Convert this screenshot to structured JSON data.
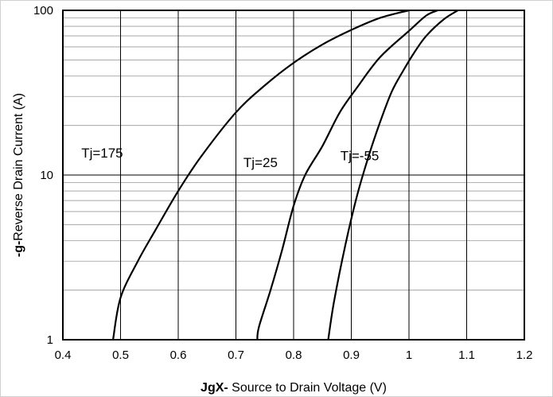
{
  "chart_data": {
    "type": "line",
    "xlabel_prefix": "JgX-",
    "xlabel_rest": " Source to Drain Voltage (V)",
    "ylabel_prefix": "-g-",
    "ylabel_rest": "Reverse Drain Current  (A)",
    "xlim": [
      0.4,
      1.2
    ],
    "ylim": [
      1,
      100
    ],
    "y_scale": "log",
    "grid": true,
    "x_ticks": [
      "0.4",
      "0.5",
      "0.6",
      "0.7",
      "0.8",
      "0.9",
      "1",
      "1.1",
      "1.2"
    ],
    "y_ticks": [
      "1",
      "10",
      "100"
    ],
    "series": [
      {
        "name": "Tj=175",
        "x": [
          0.487,
          0.5,
          0.53,
          0.56,
          0.6,
          0.64,
          0.7,
          0.75,
          0.8,
          0.85,
          0.9,
          0.95,
          1.0
        ],
        "y": [
          1,
          1.8,
          3.0,
          4.6,
          8.0,
          13.0,
          24,
          35,
          48,
          62,
          76,
          90,
          100
        ]
      },
      {
        "name": "Tj=25",
        "x": [
          0.737,
          0.74,
          0.76,
          0.78,
          0.8,
          0.82,
          0.85,
          0.88,
          0.91,
          0.95,
          1.0,
          1.03,
          1.05
        ],
        "y": [
          1,
          1.2,
          2.0,
          3.5,
          6.5,
          10,
          15,
          24,
          34,
          52,
          75,
          93,
          100
        ]
      },
      {
        "name": "Tj=-55",
        "x": [
          0.86,
          0.87,
          0.89,
          0.91,
          0.93,
          0.95,
          0.97,
          0.99,
          1.01,
          1.03,
          1.06,
          1.085
        ],
        "y": [
          1,
          1.7,
          3.8,
          7.5,
          13,
          21,
          32,
          43,
          56,
          70,
          88,
          100
        ]
      }
    ],
    "annotations": [
      "Tj=175",
      "Tj=25",
      "Tj=-55"
    ]
  }
}
